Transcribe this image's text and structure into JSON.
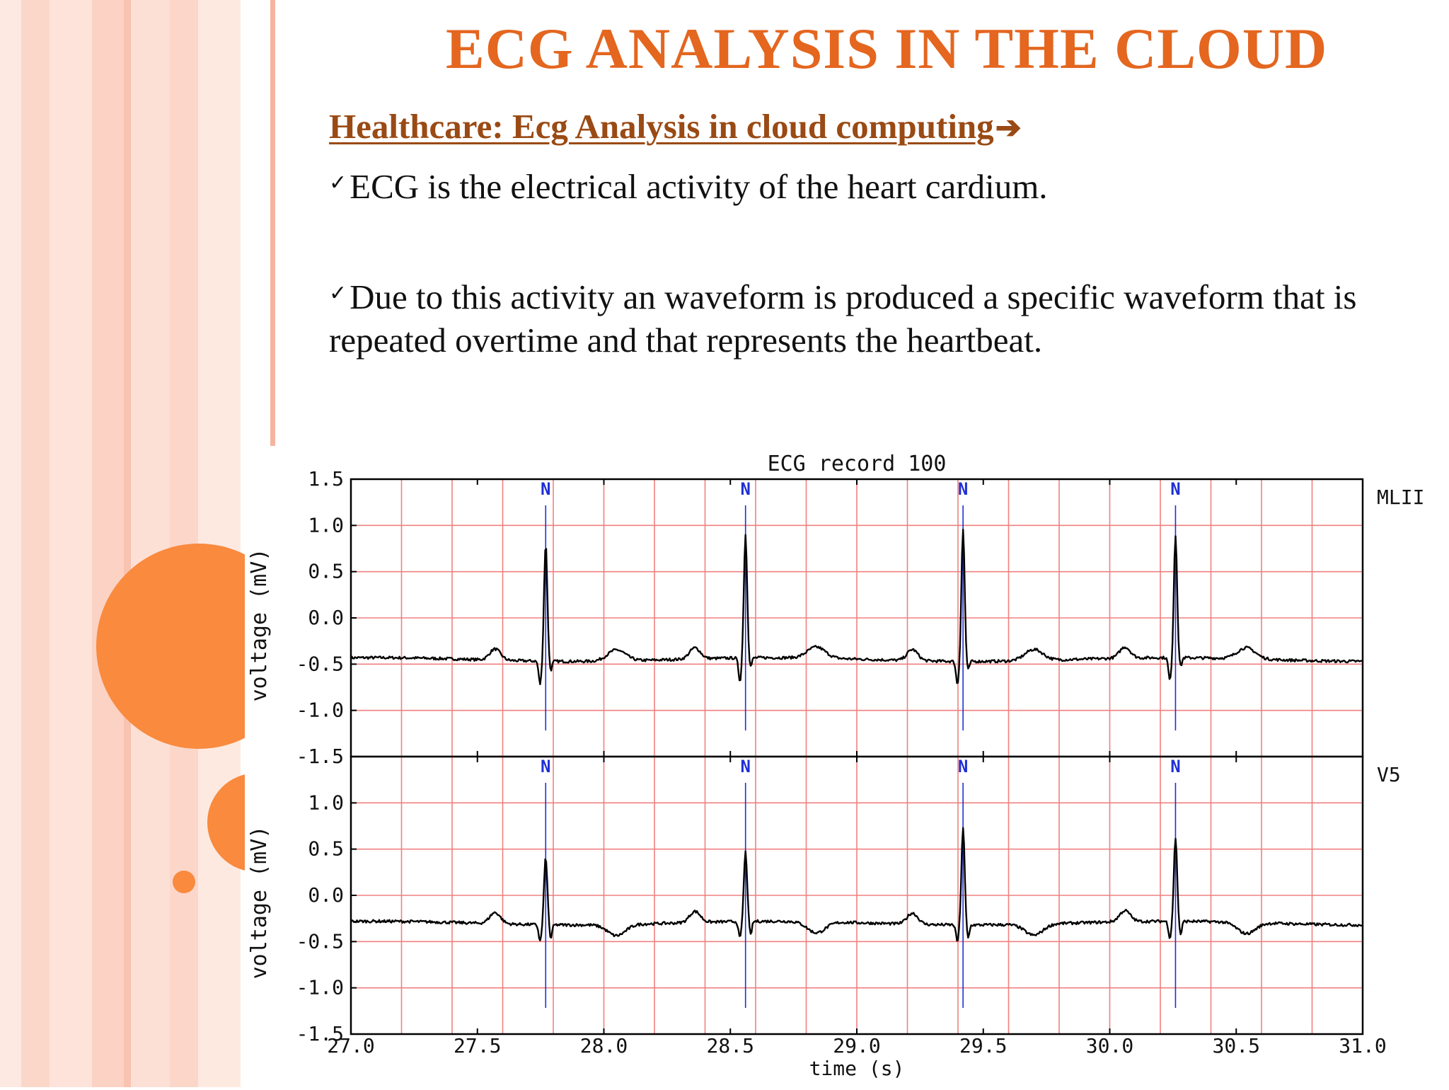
{
  "slide": {
    "title": "ECG ANALYSIS IN THE CLOUD",
    "subtitle": "Healthcare: Ecg Analysis in cloud computing",
    "subtitle_arrow": "➔",
    "check_mark": "✓",
    "bullets": [
      "ECG is the electrical activity of the heart cardium.",
      "Due to this activity an waveform is produced a specific waveform that is repeated overtime  and that represents the heartbeat."
    ]
  },
  "theme": {
    "title_color": "#e4661f",
    "subtitle_color": "#9a4a14",
    "accent_orange": "#f98a3e",
    "stripe_pink": "#fbd2c4",
    "grid_red": "#f08080",
    "annotation_blue": "#1f2fd6"
  },
  "chart_data": {
    "type": "line",
    "title": "ECG record 100",
    "xlabel": "time (s)",
    "xlim": [
      27.0,
      31.0
    ],
    "x_ticks": [
      "27.0",
      "27.5",
      "28.0",
      "28.5",
      "29.0",
      "29.5",
      "30.0",
      "30.5",
      "31.0"
    ],
    "beat_label": "N",
    "beat_times": [
      27.77,
      28.56,
      29.42,
      30.26
    ],
    "panels": [
      {
        "lead": "MLII",
        "ylabel": "voltage (mV)",
        "ylim": [
          -1.5,
          1.5
        ],
        "y_ticks": [
          "1.5",
          "1.0",
          "0.5",
          "0.0",
          "-0.5",
          "-1.0",
          "-1.5"
        ],
        "baseline": -0.45,
        "r_peaks": [
          0.82,
          0.88,
          0.97,
          0.87
        ],
        "q_depth": -0.7,
        "s_depth": -0.55
      },
      {
        "lead": "V5",
        "ylabel": "voltage (mV)",
        "ylim": [
          -1.5,
          1.5
        ],
        "y_ticks": [
          "1.0",
          "0.5",
          "0.0",
          "-0.5",
          "-1.0",
          "-1.5"
        ],
        "baseline": -0.3,
        "r_peaks": [
          0.43,
          0.45,
          0.75,
          0.6
        ],
        "q_depth": -0.48,
        "s_depth": -0.45
      }
    ]
  }
}
